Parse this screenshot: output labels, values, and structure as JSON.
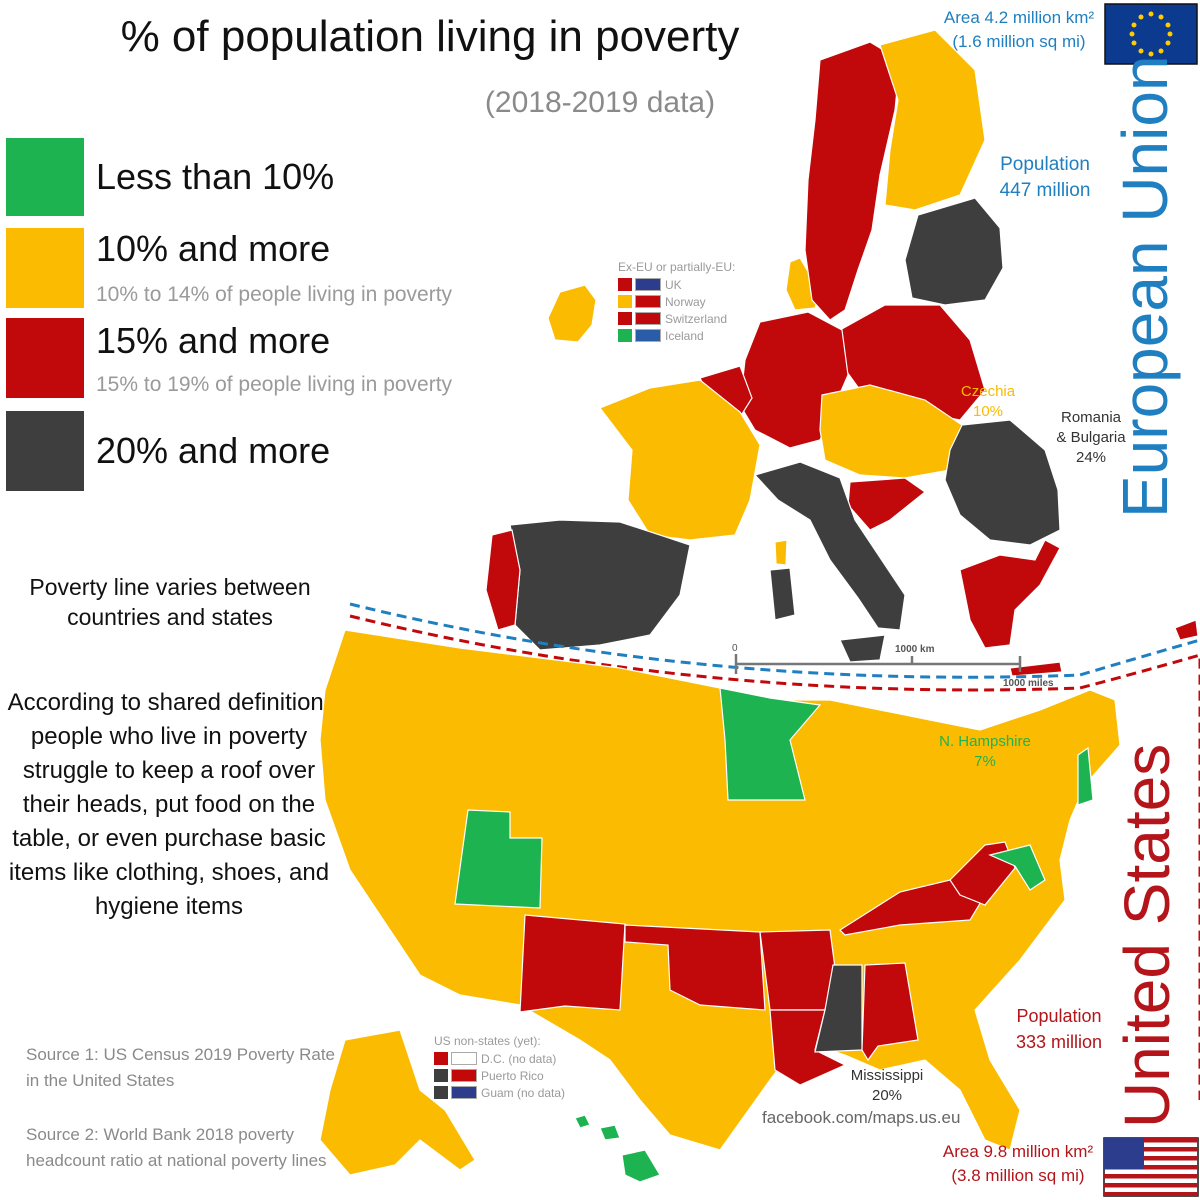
{
  "title": "% of population living in poverty",
  "subtitle": "(2018-2019 data)",
  "colors": {
    "green": "#1db351",
    "yellow": "#fbbb00",
    "red": "#c1080b",
    "dark": "#3e3e3e",
    "eu_blue": "#1f7fc0",
    "us_red": "#b3151a"
  },
  "legend": [
    {
      "label": "Less than 10%",
      "sublabel": "",
      "color": "#1db351"
    },
    {
      "label": "10% and more",
      "sublabel": "10% to 14% of people living in poverty",
      "color": "#fbbb00"
    },
    {
      "label": "15% and more",
      "sublabel": "15% to 19% of people living in poverty",
      "color": "#c1080b"
    },
    {
      "label": "20% and more",
      "sublabel": "",
      "color": "#3e3e3e"
    }
  ],
  "notes": {
    "line1": "Poverty line varies between",
    "line2": "countries and states",
    "definition": [
      "According to shared definition,",
      "people who live in poverty",
      "struggle to keep a roof over",
      "their heads, put food on the",
      "table, or even purchase basic",
      "items like clothing, shoes, and",
      "hygiene items"
    ]
  },
  "sources": {
    "s1_line1": "Source 1: US Census 2019 Poverty Rate",
    "s1_line2": "in the United States",
    "s2_line1": "Source 2: World Bank 2018 poverty",
    "s2_line2": "headcount ratio at national poverty lines"
  },
  "eu": {
    "name": "European Union",
    "area_line1": "Area 4.2 million km²",
    "area_line2": "(1.6 million sq mi)",
    "population_label": "Population",
    "population_value": "447 million",
    "flag": "eu-flag-icon"
  },
  "us": {
    "name": "United States",
    "area_line1": "Area 9.8 million km²",
    "area_line2": "(3.8 million sq mi)",
    "population_label": "Population",
    "population_value": "333 million",
    "flag": "us-flag-icon"
  },
  "ex_eu_legend": {
    "title": "Ex-EU or partially-EU:",
    "items": [
      {
        "label": "UK",
        "color": "#c1080b",
        "flag": "uk-flag-icon"
      },
      {
        "label": "Norway",
        "color": "#fbbb00",
        "flag": "norway-flag-icon"
      },
      {
        "label": "Switzerland",
        "color": "#c1080b",
        "flag": "switzerland-flag-icon"
      },
      {
        "label": "Iceland",
        "color": "#1db351",
        "flag": "iceland-flag-icon"
      }
    ]
  },
  "us_nonstates_legend": {
    "title": "US non-states (yet):",
    "items": [
      {
        "label": "D.C. (no data)",
        "color": "#c1080b",
        "flag": "dc-flag-icon"
      },
      {
        "label": "Puerto Rico",
        "color": "#3e3e3e",
        "flag": "puerto-rico-flag-icon"
      },
      {
        "label": "Guam (no data)",
        "color": "#3e3e3e",
        "flag": "guam-flag-icon"
      }
    ]
  },
  "annotations": {
    "czechia_name": "Czechia",
    "czechia_value": "10%",
    "romania_line1": "Romania",
    "romania_line2": "& Bulgaria",
    "romania_value": "24%",
    "nh_name": "N. Hampshire",
    "nh_value": "7%",
    "ms_name": "Mississippi",
    "ms_value": "20%"
  },
  "scale": {
    "zero": "0",
    "km": "1000 km",
    "miles": "1000 miles"
  },
  "credit": "facebook.com/maps.us.eu"
}
